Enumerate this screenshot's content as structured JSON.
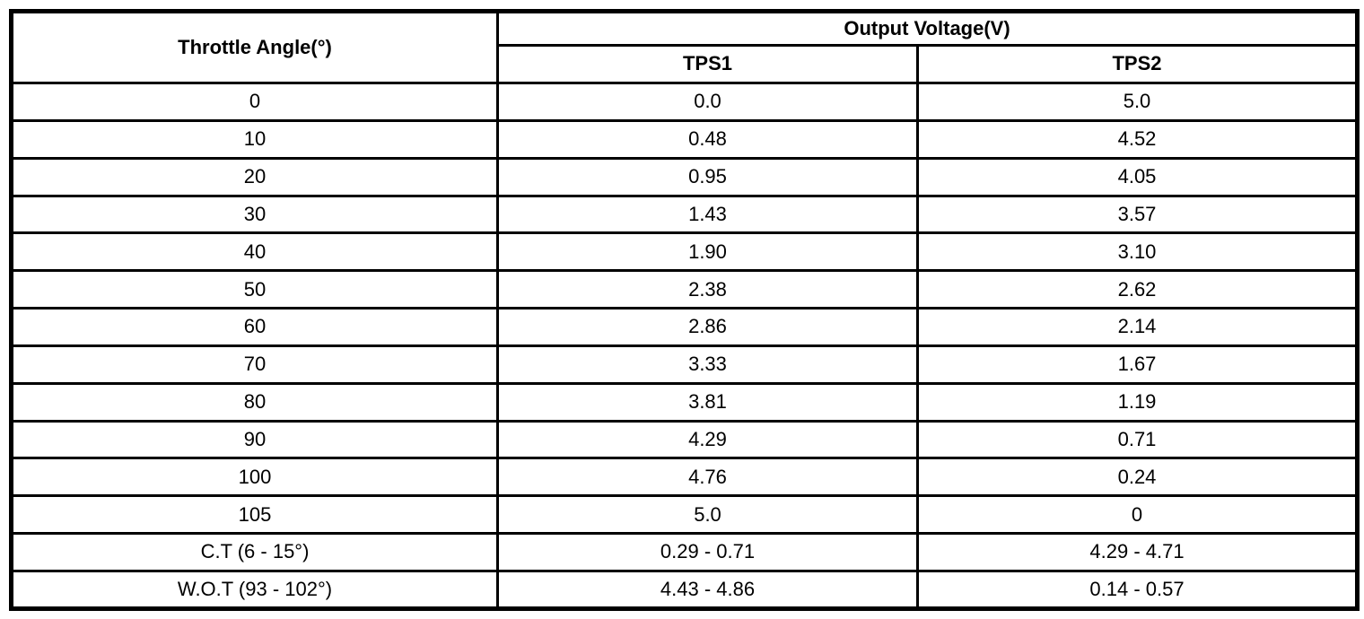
{
  "table": {
    "col1_header": "Throttle Angle(°)",
    "group_header": "Output Voltage(V)",
    "sub_headers": [
      "TPS1",
      "TPS2"
    ],
    "rows": [
      {
        "angle": "0",
        "tps1": "0.0",
        "tps2": "5.0"
      },
      {
        "angle": "10",
        "tps1": "0.48",
        "tps2": "4.52"
      },
      {
        "angle": "20",
        "tps1": "0.95",
        "tps2": "4.05"
      },
      {
        "angle": "30",
        "tps1": "1.43",
        "tps2": "3.57"
      },
      {
        "angle": "40",
        "tps1": "1.90",
        "tps2": "3.10"
      },
      {
        "angle": "50",
        "tps1": "2.38",
        "tps2": "2.62"
      },
      {
        "angle": "60",
        "tps1": "2.86",
        "tps2": "2.14"
      },
      {
        "angle": "70",
        "tps1": "3.33",
        "tps2": "1.67"
      },
      {
        "angle": "80",
        "tps1": "3.81",
        "tps2": "1.19"
      },
      {
        "angle": "90",
        "tps1": "4.29",
        "tps2": "0.71"
      },
      {
        "angle": "100",
        "tps1": "4.76",
        "tps2": "0.24"
      },
      {
        "angle": "105",
        "tps1": "5.0",
        "tps2": "0"
      },
      {
        "angle": "C.T (6 - 15°)",
        "tps1": "0.29 - 0.71",
        "tps2": "4.29 - 4.71"
      },
      {
        "angle": "W.O.T (93 - 102°)",
        "tps1": "4.43 - 4.86",
        "tps2": "0.14 - 0.57"
      }
    ]
  },
  "colors": {
    "border": "#000000",
    "background": "#ffffff",
    "text": "#000000"
  }
}
